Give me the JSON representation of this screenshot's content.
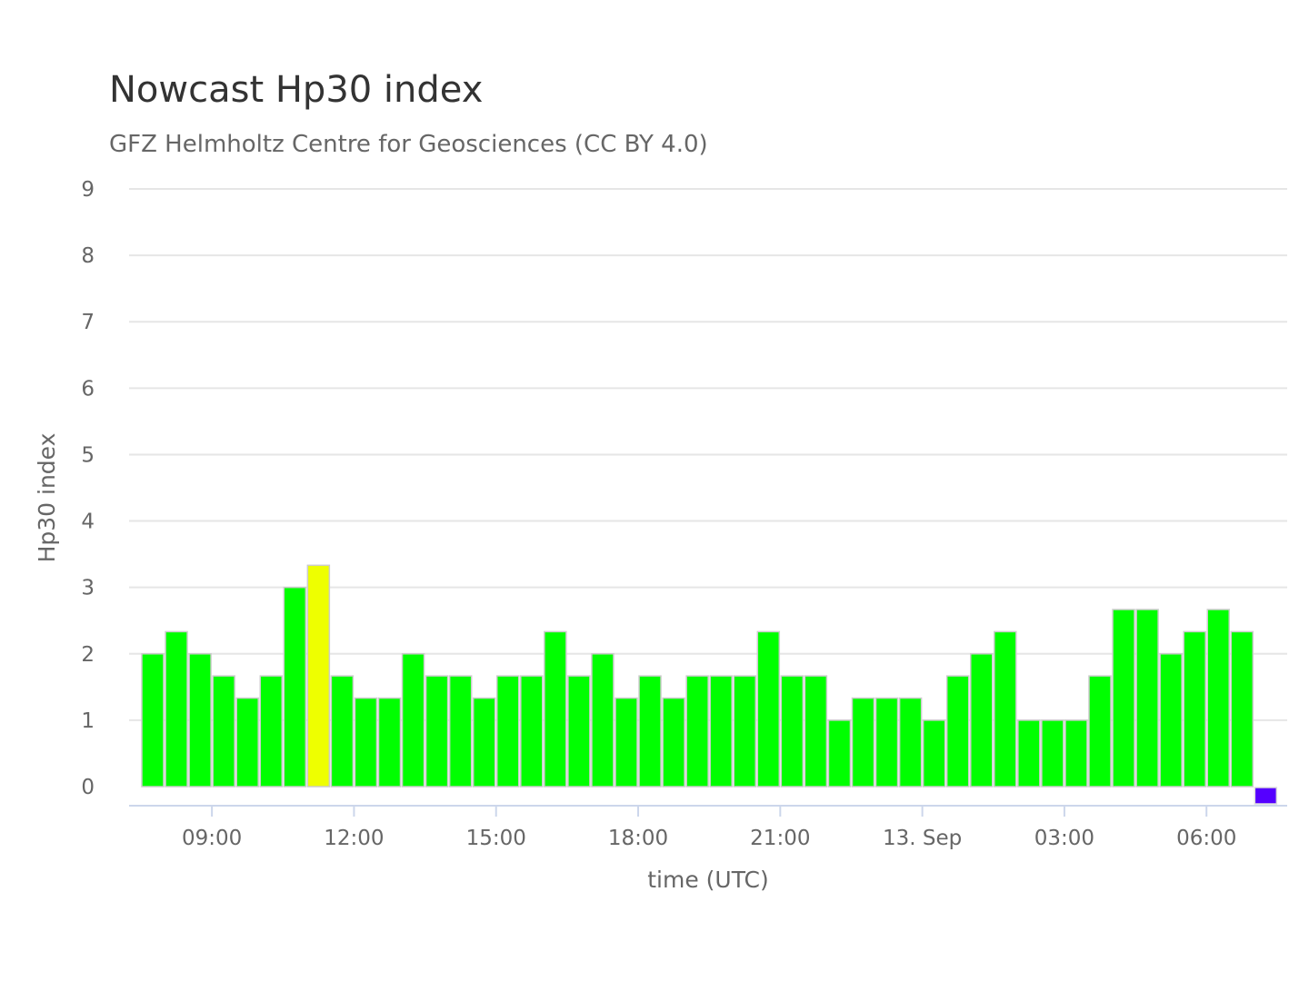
{
  "chart_data": {
    "type": "bar",
    "title": "Nowcast Hp30 index",
    "subtitle": "GFZ Helmholtz Centre for Geosciences (CC BY 4.0)",
    "xlabel": "time (UTC)",
    "ylabel": "Hp30 index",
    "ylim": [
      0,
      9
    ],
    "yticks": [
      "0",
      "1",
      "2",
      "3",
      "4",
      "5",
      "6",
      "7",
      "8",
      "9"
    ],
    "xticks": [
      "09:00",
      "12:00",
      "15:00",
      "18:00",
      "21:00",
      "13. Sep",
      "03:00",
      "06:00"
    ],
    "grid": true,
    "legend": "none",
    "interval": "30 min",
    "first_bar_start": "12 Sep 07:30",
    "series": [
      {
        "values": [
          2,
          2.333,
          2,
          1.667,
          1.333,
          1.667,
          3,
          3.333,
          1.667,
          1.333,
          1.333,
          2,
          1.667,
          1.667,
          1.333,
          1.667,
          1.667,
          2.333,
          1.667,
          2,
          1.333,
          1.667,
          1.333,
          1.667,
          1.667,
          1.667,
          2.333,
          1.667,
          1.667,
          1,
          1.333,
          1.333,
          1.333,
          1,
          1.667,
          2,
          2.333,
          1,
          1,
          1,
          1.667,
          2.667,
          2.667,
          2,
          2.333,
          2.667,
          2.333,
          0
        ]
      }
    ],
    "colors": {
      "quiet": "#00ff00",
      "elevated": "#eeff00",
      "pending": "#5500ff",
      "gridline": "#e6e6e6",
      "axis_line": "#ccd6eb"
    },
    "bar_color_keys": [
      "quiet",
      "quiet",
      "quiet",
      "quiet",
      "quiet",
      "quiet",
      "quiet",
      "elevated",
      "quiet",
      "quiet",
      "quiet",
      "quiet",
      "quiet",
      "quiet",
      "quiet",
      "quiet",
      "quiet",
      "quiet",
      "quiet",
      "quiet",
      "quiet",
      "quiet",
      "quiet",
      "quiet",
      "quiet",
      "quiet",
      "quiet",
      "quiet",
      "quiet",
      "quiet",
      "quiet",
      "quiet",
      "quiet",
      "quiet",
      "quiet",
      "quiet",
      "quiet",
      "quiet",
      "quiet",
      "quiet",
      "quiet",
      "quiet",
      "quiet",
      "quiet",
      "quiet",
      "quiet",
      "quiet",
      "pending"
    ]
  }
}
